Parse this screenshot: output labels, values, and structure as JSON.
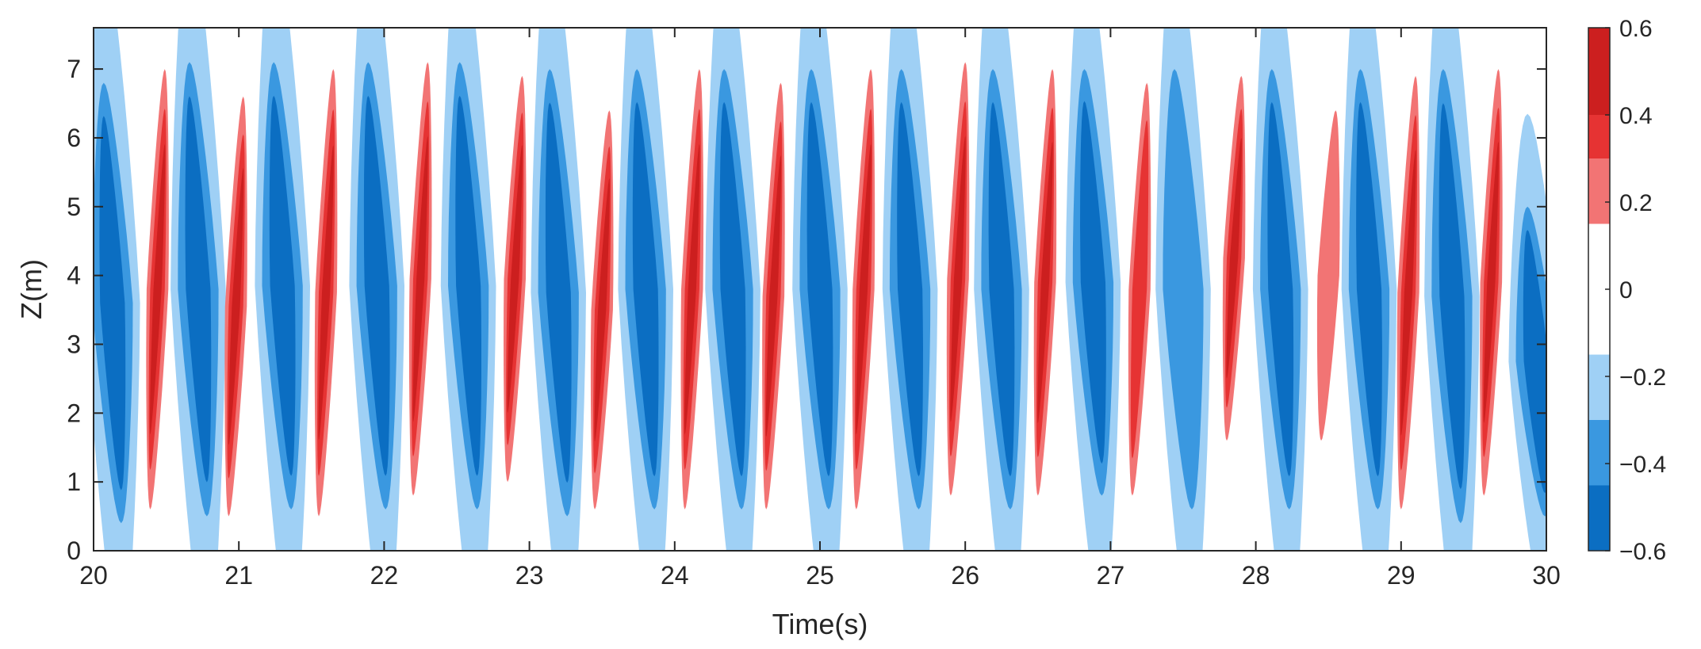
{
  "chart_data": {
    "type": "heatmap",
    "title": "",
    "xlabel": "Time(s)",
    "ylabel": "Z(m)",
    "xlim": [
      20,
      30
    ],
    "ylim": [
      0,
      7.6
    ],
    "xticks": [
      "20",
      "21",
      "22",
      "23",
      "24",
      "25",
      "26",
      "27",
      "28",
      "29",
      "30"
    ],
    "yticks": [
      "0",
      "1",
      "2",
      "3",
      "4",
      "5",
      "6",
      "7"
    ],
    "grid": false,
    "colorbar": {
      "position": "right",
      "range": [
        -0.6,
        0.6
      ],
      "ticks": [
        "0.6",
        "0.4",
        "0.2",
        "0",
        "−0.2",
        "−0.4",
        "−0.6"
      ],
      "levels": [
        {
          "min": 0.4,
          "max": 0.6,
          "color": "#cc1f1f"
        },
        {
          "min": 0.3,
          "max": 0.4,
          "color": "#e63333"
        },
        {
          "min": 0.15,
          "max": 0.3,
          "color": "#f27474"
        },
        {
          "min": -0.15,
          "max": 0.15,
          "color": "#ffffff"
        },
        {
          "min": -0.3,
          "max": -0.15,
          "color": "#9fd0f5"
        },
        {
          "min": -0.45,
          "max": -0.3,
          "color": "#3a98e0"
        },
        {
          "min": -0.6,
          "max": -0.45,
          "color": "#0b6ec2"
        }
      ]
    },
    "red_bands": [
      {
        "t": 20.44,
        "zmin": 0.6,
        "zmax": 7.0,
        "peak": 0.55
      },
      {
        "t": 20.98,
        "zmin": 0.5,
        "zmax": 6.6,
        "peak": 0.5
      },
      {
        "t": 21.6,
        "zmin": 0.5,
        "zmax": 7.0,
        "peak": 0.6
      },
      {
        "t": 22.25,
        "zmin": 0.8,
        "zmax": 7.1,
        "peak": 0.55
      },
      {
        "t": 22.9,
        "zmin": 1.0,
        "zmax": 6.9,
        "peak": 0.45
      },
      {
        "t": 23.5,
        "zmin": 0.6,
        "zmax": 6.4,
        "peak": 0.45
      },
      {
        "t": 24.12,
        "zmin": 0.6,
        "zmax": 7.0,
        "peak": 0.55
      },
      {
        "t": 24.68,
        "zmin": 0.6,
        "zmax": 6.8,
        "peak": 0.5
      },
      {
        "t": 25.3,
        "zmin": 0.6,
        "zmax": 7.0,
        "peak": 0.6
      },
      {
        "t": 25.95,
        "zmin": 0.8,
        "zmax": 7.1,
        "peak": 0.55
      },
      {
        "t": 26.55,
        "zmin": 0.8,
        "zmax": 7.0,
        "peak": 0.45
      },
      {
        "t": 27.2,
        "zmin": 0.8,
        "zmax": 6.8,
        "peak": 0.4
      },
      {
        "t": 27.85,
        "zmin": 1.6,
        "zmax": 6.9,
        "peak": 0.45
      },
      {
        "t": 28.5,
        "zmin": 1.6,
        "zmax": 6.4,
        "peak": 0.3
      },
      {
        "t": 29.05,
        "zmin": 0.6,
        "zmax": 6.9,
        "peak": 0.5
      },
      {
        "t": 29.62,
        "zmin": 0.8,
        "zmax": 7.0,
        "peak": 0.5
      }
    ],
    "blue_bands": [
      {
        "t": 20.13,
        "zmin": 0.4,
        "zmax": 6.8,
        "peak": -0.55
      },
      {
        "t": 20.72,
        "zmin": 0.5,
        "zmax": 7.1,
        "peak": -0.55
      },
      {
        "t": 21.3,
        "zmin": 0.6,
        "zmax": 7.1,
        "peak": -0.55
      },
      {
        "t": 21.95,
        "zmin": 0.6,
        "zmax": 7.1,
        "peak": -0.55
      },
      {
        "t": 22.58,
        "zmin": 0.6,
        "zmax": 7.1,
        "peak": -0.55
      },
      {
        "t": 23.2,
        "zmin": 0.5,
        "zmax": 7.0,
        "peak": -0.5
      },
      {
        "t": 23.8,
        "zmin": 0.6,
        "zmax": 7.0,
        "peak": -0.55
      },
      {
        "t": 24.4,
        "zmin": 0.6,
        "zmax": 7.0,
        "peak": -0.55
      },
      {
        "t": 25.0,
        "zmin": 0.6,
        "zmax": 7.0,
        "peak": -0.55
      },
      {
        "t": 25.62,
        "zmin": 0.6,
        "zmax": 7.0,
        "peak": -0.55
      },
      {
        "t": 26.25,
        "zmin": 0.6,
        "zmax": 7.0,
        "peak": -0.55
      },
      {
        "t": 26.88,
        "zmin": 0.8,
        "zmax": 7.0,
        "peak": -0.5
      },
      {
        "t": 27.5,
        "zmin": 0.6,
        "zmax": 7.0,
        "peak": -0.45
      },
      {
        "t": 28.17,
        "zmin": 0.6,
        "zmax": 7.0,
        "peak": -0.55
      },
      {
        "t": 28.78,
        "zmin": 0.6,
        "zmax": 7.0,
        "peak": -0.55
      },
      {
        "t": 29.35,
        "zmin": 0.4,
        "zmax": 7.0,
        "peak": -0.5
      },
      {
        "t": 29.93,
        "zmin": 0.5,
        "zmax": 5.0,
        "peak": -0.55
      }
    ]
  }
}
